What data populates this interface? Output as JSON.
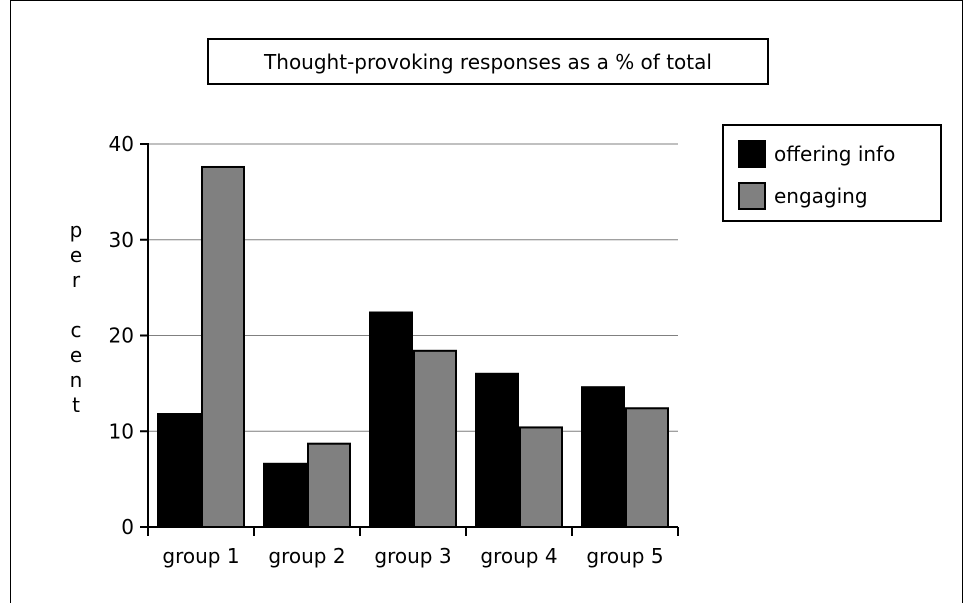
{
  "chart_data": {
    "type": "bar",
    "title": "Thought-provoking responses as a % of total",
    "xlabel": "",
    "ylabel_letters": [
      "p",
      "e",
      "r",
      "",
      "c",
      "e",
      "n",
      "t"
    ],
    "categories": [
      "group 1",
      "group 2",
      "group 3",
      "group 4",
      "group 5"
    ],
    "series": [
      {
        "name": "offering info",
        "values": [
          11.8,
          6.6,
          22.4,
          16.0,
          14.6
        ]
      },
      {
        "name": "engaging",
        "values": [
          37.6,
          8.7,
          18.4,
          10.4,
          12.4
        ]
      }
    ],
    "ylim": [
      0,
      40
    ],
    "yticks": [
      0,
      10,
      20,
      30,
      40
    ],
    "grid": true,
    "legend_position": "right"
  },
  "colors": {
    "offering_info": "#000000",
    "engaging": "#808080",
    "grid": "#808080",
    "axis": "#000000"
  }
}
